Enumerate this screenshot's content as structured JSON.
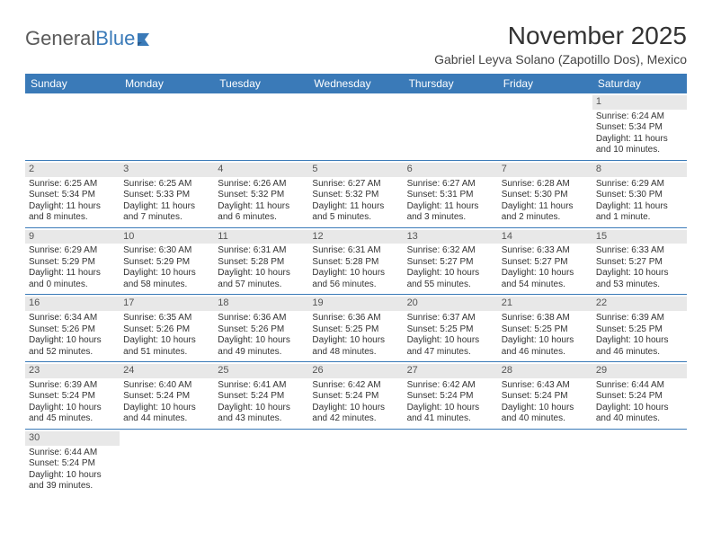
{
  "logo": {
    "text1": "General",
    "text2": "Blue"
  },
  "title": "November 2025",
  "location": "Gabriel Leyva Solano (Zapotillo Dos), Mexico",
  "colors": {
    "header_bg": "#3a7ab8",
    "header_text": "#ffffff",
    "daynum_bg": "#e8e8e8",
    "text": "#333333",
    "background": "#ffffff"
  },
  "day_names": [
    "Sunday",
    "Monday",
    "Tuesday",
    "Wednesday",
    "Thursday",
    "Friday",
    "Saturday"
  ],
  "weeks": [
    [
      {
        "empty": true
      },
      {
        "empty": true
      },
      {
        "empty": true
      },
      {
        "empty": true
      },
      {
        "empty": true
      },
      {
        "empty": true
      },
      {
        "num": "1",
        "sunrise": "Sunrise: 6:24 AM",
        "sunset": "Sunset: 5:34 PM",
        "daylight1": "Daylight: 11 hours",
        "daylight2": "and 10 minutes."
      }
    ],
    [
      {
        "num": "2",
        "sunrise": "Sunrise: 6:25 AM",
        "sunset": "Sunset: 5:34 PM",
        "daylight1": "Daylight: 11 hours",
        "daylight2": "and 8 minutes."
      },
      {
        "num": "3",
        "sunrise": "Sunrise: 6:25 AM",
        "sunset": "Sunset: 5:33 PM",
        "daylight1": "Daylight: 11 hours",
        "daylight2": "and 7 minutes."
      },
      {
        "num": "4",
        "sunrise": "Sunrise: 6:26 AM",
        "sunset": "Sunset: 5:32 PM",
        "daylight1": "Daylight: 11 hours",
        "daylight2": "and 6 minutes."
      },
      {
        "num": "5",
        "sunrise": "Sunrise: 6:27 AM",
        "sunset": "Sunset: 5:32 PM",
        "daylight1": "Daylight: 11 hours",
        "daylight2": "and 5 minutes."
      },
      {
        "num": "6",
        "sunrise": "Sunrise: 6:27 AM",
        "sunset": "Sunset: 5:31 PM",
        "daylight1": "Daylight: 11 hours",
        "daylight2": "and 3 minutes."
      },
      {
        "num": "7",
        "sunrise": "Sunrise: 6:28 AM",
        "sunset": "Sunset: 5:30 PM",
        "daylight1": "Daylight: 11 hours",
        "daylight2": "and 2 minutes."
      },
      {
        "num": "8",
        "sunrise": "Sunrise: 6:29 AM",
        "sunset": "Sunset: 5:30 PM",
        "daylight1": "Daylight: 11 hours",
        "daylight2": "and 1 minute."
      }
    ],
    [
      {
        "num": "9",
        "sunrise": "Sunrise: 6:29 AM",
        "sunset": "Sunset: 5:29 PM",
        "daylight1": "Daylight: 11 hours",
        "daylight2": "and 0 minutes."
      },
      {
        "num": "10",
        "sunrise": "Sunrise: 6:30 AM",
        "sunset": "Sunset: 5:29 PM",
        "daylight1": "Daylight: 10 hours",
        "daylight2": "and 58 minutes."
      },
      {
        "num": "11",
        "sunrise": "Sunrise: 6:31 AM",
        "sunset": "Sunset: 5:28 PM",
        "daylight1": "Daylight: 10 hours",
        "daylight2": "and 57 minutes."
      },
      {
        "num": "12",
        "sunrise": "Sunrise: 6:31 AM",
        "sunset": "Sunset: 5:28 PM",
        "daylight1": "Daylight: 10 hours",
        "daylight2": "and 56 minutes."
      },
      {
        "num": "13",
        "sunrise": "Sunrise: 6:32 AM",
        "sunset": "Sunset: 5:27 PM",
        "daylight1": "Daylight: 10 hours",
        "daylight2": "and 55 minutes."
      },
      {
        "num": "14",
        "sunrise": "Sunrise: 6:33 AM",
        "sunset": "Sunset: 5:27 PM",
        "daylight1": "Daylight: 10 hours",
        "daylight2": "and 54 minutes."
      },
      {
        "num": "15",
        "sunrise": "Sunrise: 6:33 AM",
        "sunset": "Sunset: 5:27 PM",
        "daylight1": "Daylight: 10 hours",
        "daylight2": "and 53 minutes."
      }
    ],
    [
      {
        "num": "16",
        "sunrise": "Sunrise: 6:34 AM",
        "sunset": "Sunset: 5:26 PM",
        "daylight1": "Daylight: 10 hours",
        "daylight2": "and 52 minutes."
      },
      {
        "num": "17",
        "sunrise": "Sunrise: 6:35 AM",
        "sunset": "Sunset: 5:26 PM",
        "daylight1": "Daylight: 10 hours",
        "daylight2": "and 51 minutes."
      },
      {
        "num": "18",
        "sunrise": "Sunrise: 6:36 AM",
        "sunset": "Sunset: 5:26 PM",
        "daylight1": "Daylight: 10 hours",
        "daylight2": "and 49 minutes."
      },
      {
        "num": "19",
        "sunrise": "Sunrise: 6:36 AM",
        "sunset": "Sunset: 5:25 PM",
        "daylight1": "Daylight: 10 hours",
        "daylight2": "and 48 minutes."
      },
      {
        "num": "20",
        "sunrise": "Sunrise: 6:37 AM",
        "sunset": "Sunset: 5:25 PM",
        "daylight1": "Daylight: 10 hours",
        "daylight2": "and 47 minutes."
      },
      {
        "num": "21",
        "sunrise": "Sunrise: 6:38 AM",
        "sunset": "Sunset: 5:25 PM",
        "daylight1": "Daylight: 10 hours",
        "daylight2": "and 46 minutes."
      },
      {
        "num": "22",
        "sunrise": "Sunrise: 6:39 AM",
        "sunset": "Sunset: 5:25 PM",
        "daylight1": "Daylight: 10 hours",
        "daylight2": "and 46 minutes."
      }
    ],
    [
      {
        "num": "23",
        "sunrise": "Sunrise: 6:39 AM",
        "sunset": "Sunset: 5:24 PM",
        "daylight1": "Daylight: 10 hours",
        "daylight2": "and 45 minutes."
      },
      {
        "num": "24",
        "sunrise": "Sunrise: 6:40 AM",
        "sunset": "Sunset: 5:24 PM",
        "daylight1": "Daylight: 10 hours",
        "daylight2": "and 44 minutes."
      },
      {
        "num": "25",
        "sunrise": "Sunrise: 6:41 AM",
        "sunset": "Sunset: 5:24 PM",
        "daylight1": "Daylight: 10 hours",
        "daylight2": "and 43 minutes."
      },
      {
        "num": "26",
        "sunrise": "Sunrise: 6:42 AM",
        "sunset": "Sunset: 5:24 PM",
        "daylight1": "Daylight: 10 hours",
        "daylight2": "and 42 minutes."
      },
      {
        "num": "27",
        "sunrise": "Sunrise: 6:42 AM",
        "sunset": "Sunset: 5:24 PM",
        "daylight1": "Daylight: 10 hours",
        "daylight2": "and 41 minutes."
      },
      {
        "num": "28",
        "sunrise": "Sunrise: 6:43 AM",
        "sunset": "Sunset: 5:24 PM",
        "daylight1": "Daylight: 10 hours",
        "daylight2": "and 40 minutes."
      },
      {
        "num": "29",
        "sunrise": "Sunrise: 6:44 AM",
        "sunset": "Sunset: 5:24 PM",
        "daylight1": "Daylight: 10 hours",
        "daylight2": "and 40 minutes."
      }
    ],
    [
      {
        "num": "30",
        "sunrise": "Sunrise: 6:44 AM",
        "sunset": "Sunset: 5:24 PM",
        "daylight1": "Daylight: 10 hours",
        "daylight2": "and 39 minutes."
      },
      {
        "empty": true
      },
      {
        "empty": true
      },
      {
        "empty": true
      },
      {
        "empty": true
      },
      {
        "empty": true
      },
      {
        "empty": true
      }
    ]
  ]
}
